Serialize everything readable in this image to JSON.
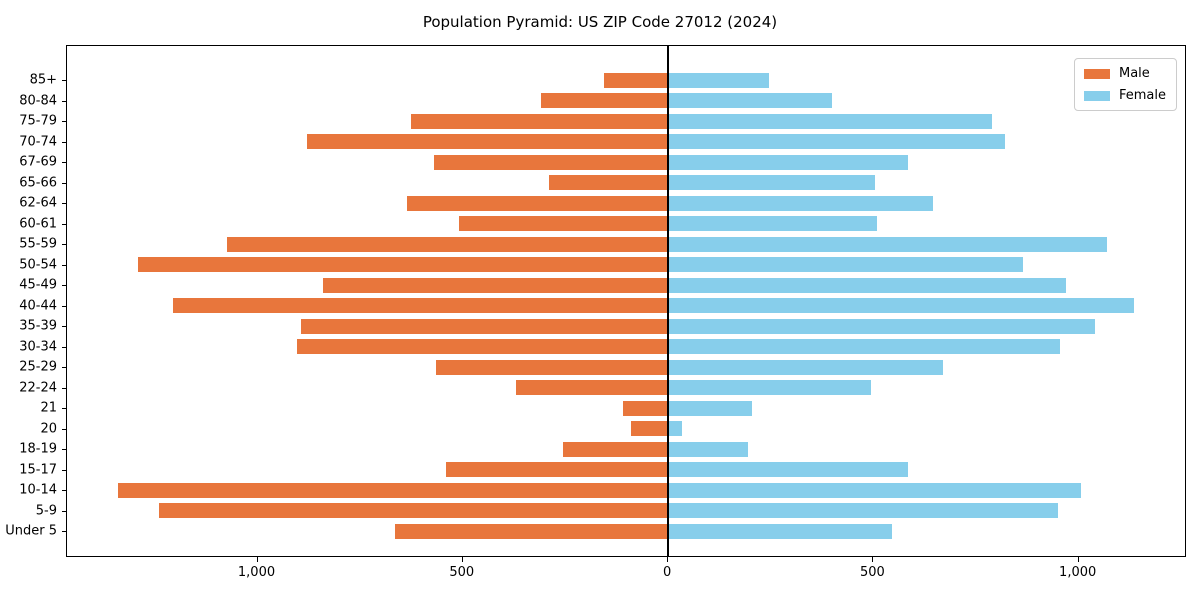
{
  "title": "Population Pyramid: US ZIP Code 27012 (2024)",
  "chart_data": {
    "type": "bar",
    "orientation": "horizontal",
    "title": "Population Pyramid: US ZIP Code 27012 (2024)",
    "categories": [
      "85+",
      "80-84",
      "75-79",
      "70-74",
      "67-69",
      "65-66",
      "62-64",
      "60-61",
      "55-59",
      "50-54",
      "45-49",
      "40-44",
      "35-39",
      "30-34",
      "25-29",
      "22-24",
      "21",
      "20",
      "18-19",
      "15-17",
      "10-14",
      "5-9",
      "Under 5"
    ],
    "series": [
      {
        "name": "Male",
        "side": "left",
        "color": "#e8763c",
        "values": [
          155,
          310,
          625,
          880,
          570,
          290,
          635,
          510,
          1075,
          1290,
          840,
          1205,
          895,
          905,
          565,
          370,
          110,
          90,
          255,
          540,
          1340,
          1240,
          665
        ]
      },
      {
        "name": "Female",
        "side": "right",
        "color": "#87ceeb",
        "values": [
          245,
          400,
          790,
          820,
          585,
          505,
          645,
          510,
          1070,
          865,
          970,
          1135,
          1040,
          955,
          670,
          495,
          205,
          35,
          195,
          585,
          1005,
          950,
          545
        ]
      }
    ],
    "xlim": [
      -1464,
      1259
    ],
    "xticks": {
      "values": [
        -1000,
        -500,
        0,
        500,
        1000
      ],
      "labels": [
        "1,000",
        "500",
        "0",
        "500",
        "1,000"
      ]
    },
    "legend": {
      "position": "upper right",
      "entries": [
        "Male",
        "Female"
      ]
    },
    "grid": false,
    "zero_line": true,
    "background_color": "#ffffff",
    "axis_color": "#000000"
  }
}
